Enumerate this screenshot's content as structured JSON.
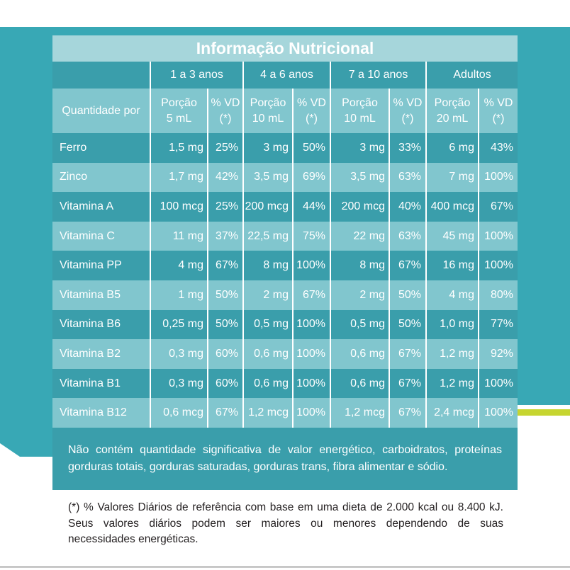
{
  "table": {
    "title": "Informação Nutricional",
    "age_groups": [
      "1 a 3 anos",
      "4 a 6 anos",
      "7 a 10 anos",
      "Adultos"
    ],
    "header": {
      "row_label": "Quantidade por",
      "columns": [
        [
          "Porção",
          "5 mL"
        ],
        [
          "% VD",
          "(*)"
        ],
        [
          "Porção",
          "10 mL"
        ],
        [
          "% VD",
          "(*)"
        ],
        [
          "Porção",
          "10 mL"
        ],
        [
          "% VD",
          "(*)"
        ],
        [
          "Porção",
          "20 mL"
        ],
        [
          "% VD",
          "(*)"
        ]
      ]
    },
    "rows": [
      {
        "nutrient": "Ferro",
        "values": [
          "1,5 mg",
          "25%",
          "3 mg",
          "50%",
          "3 mg",
          "33%",
          "6 mg",
          "43%"
        ]
      },
      {
        "nutrient": "Zinco",
        "values": [
          "1,7 mg",
          "42%",
          "3,5 mg",
          "69%",
          "3,5 mg",
          "63%",
          "7 mg",
          "100%"
        ]
      },
      {
        "nutrient": "Vitamina A",
        "values": [
          "100 mcg",
          "25%",
          "200 mcg",
          "44%",
          "200 mcg",
          "40%",
          "400 mcg",
          "67%"
        ]
      },
      {
        "nutrient": "Vitamina C",
        "values": [
          "11 mg",
          "37%",
          "22,5 mg",
          "75%",
          "22 mg",
          "63%",
          "45 mg",
          "100%"
        ]
      },
      {
        "nutrient": "Vitamina PP",
        "values": [
          "4 mg",
          "67%",
          "8 mg",
          "100%",
          "8 mg",
          "67%",
          "16 mg",
          "100%"
        ]
      },
      {
        "nutrient": "Vitamina B5",
        "values": [
          "1 mg",
          "50%",
          "2 mg",
          "67%",
          "2 mg",
          "50%",
          "4 mg",
          "80%"
        ]
      },
      {
        "nutrient": "Vitamina B6",
        "values": [
          "0,25 mg",
          "50%",
          "0,5 mg",
          "100%",
          "0,5 mg",
          "50%",
          "1,0 mg",
          "77%"
        ]
      },
      {
        "nutrient": "Vitamina B2",
        "values": [
          "0,3 mg",
          "60%",
          "0,6 mg",
          "100%",
          "0,6 mg",
          "67%",
          "1,2 mg",
          "92%"
        ]
      },
      {
        "nutrient": "Vitamina B1",
        "values": [
          "0,3 mg",
          "60%",
          "0,6 mg",
          "100%",
          "0,6 mg",
          "67%",
          "1,2 mg",
          "100%"
        ]
      },
      {
        "nutrient": "Vitamina B12",
        "values": [
          "0,6 mcg",
          "67%",
          "1,2 mcg",
          "100%",
          "1,2 mcg",
          "67%",
          "2,4 mcg",
          "100%"
        ]
      }
    ]
  },
  "panel_note": {
    "lines": [
      "Não contém quantidade significativa de valor energético, carboidratos, proteínas",
      "gorduras totais, gorduras saturadas, gorduras trans, fibra alimentar e sódio."
    ]
  },
  "reference_note": {
    "lines": [
      "(*) % Valores Diários de referência com base em uma dieta de 2.000 kcal ou 8.400 kJ.",
      "Seus valores diários podem ser maiores ou menores dependendo de suas",
      "necessidades energéticas."
    ]
  },
  "colors": {
    "background_teal": "#38a8b5",
    "panel_teal": "#3a9eab",
    "light_row": "#81c6ce",
    "title_bar": "#a6d6db",
    "accent_green": "#c6d530",
    "note_text": "#231f20"
  }
}
